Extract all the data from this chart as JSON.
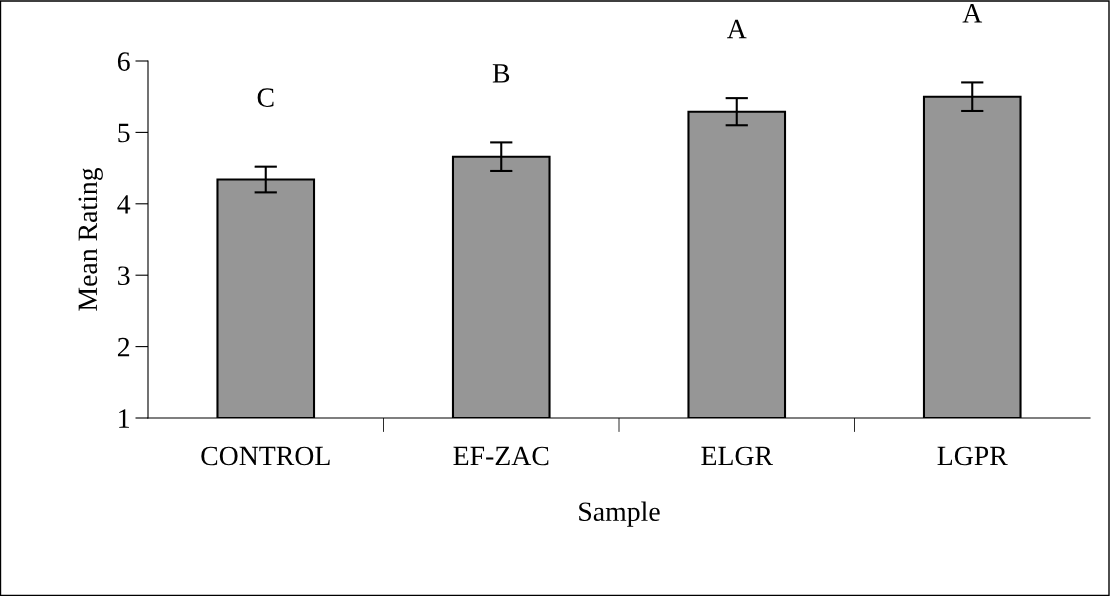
{
  "chart_data": {
    "type": "bar",
    "xlabel": "Sample",
    "ylabel": "Mean Rating",
    "categories": [
      "CONTROL",
      "EF-ZAC",
      "ELGR",
      "LGPR"
    ],
    "values": [
      4.34,
      4.66,
      5.29,
      5.5
    ],
    "errors": [
      0.18,
      0.2,
      0.19,
      0.2
    ],
    "color": "#969696",
    "ylim": [
      1,
      6
    ],
    "yticks": [
      1,
      2,
      3,
      4,
      5,
      6
    ],
    "grid": false,
    "legend": false,
    "annotations": [
      "C",
      "B",
      "A",
      "A"
    ]
  }
}
